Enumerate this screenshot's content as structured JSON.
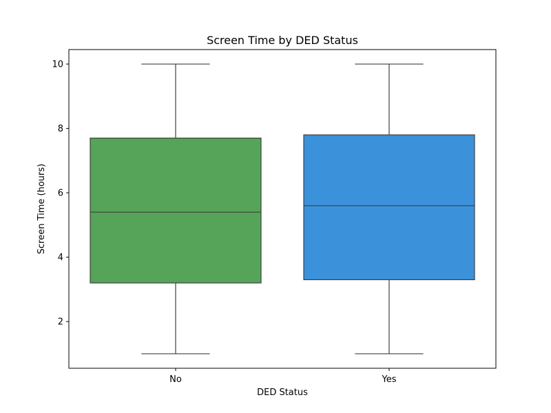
{
  "chart_data": {
    "type": "box",
    "title": "Screen Time by DED Status",
    "xlabel": "DED Status",
    "ylabel": "Screen Time (hours)",
    "ylim": [
      0.55,
      10.45
    ],
    "yticks": [
      2,
      4,
      6,
      8,
      10
    ],
    "grid": false,
    "categories": [
      "No",
      "Yes"
    ],
    "series": [
      {
        "category": "No",
        "min": 1.0,
        "q1": 3.2,
        "median": 5.4,
        "q3": 7.7,
        "max": 10.0,
        "color": "#55a459"
      },
      {
        "category": "Yes",
        "min": 1.0,
        "q1": 3.3,
        "median": 5.6,
        "q3": 7.8,
        "max": 10.0,
        "color": "#3b92db"
      }
    ]
  }
}
